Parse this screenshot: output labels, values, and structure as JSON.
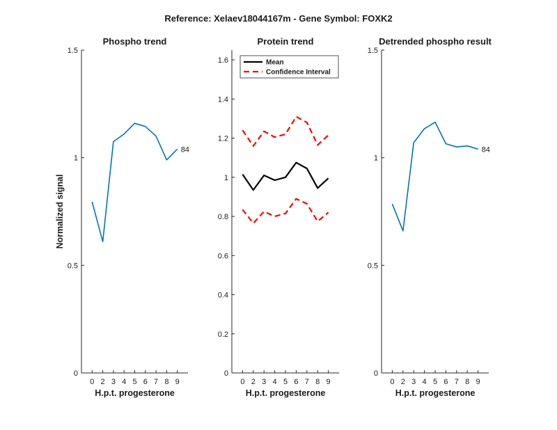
{
  "figure": {
    "suptitle": "Reference:  Xelaev18044167m - Gene Symbol:  FOXK2",
    "colors": {
      "blue": "#0072BD",
      "black": "#000000",
      "red": "#FF0000",
      "axis": "#262626"
    }
  },
  "chart_data": [
    {
      "type": "line",
      "title": "Phospho trend",
      "xlabel": "H.p.t. progesterone",
      "ylabel": "Normalized signal",
      "x_categories": [
        "0",
        "2",
        "3",
        "4",
        "5",
        "6",
        "7",
        "8",
        "9"
      ],
      "ylim": [
        0,
        1.5
      ],
      "yticks": [
        0,
        0.5,
        1,
        1.5
      ],
      "ytick_labels": [
        "0",
        "0.5",
        "1",
        "1.5"
      ],
      "grid": false,
      "series": [
        {
          "values": [
            0.795,
            0.61,
            1.075,
            1.11,
            1.16,
            1.145,
            1.1,
            0.99,
            1.04
          ],
          "color": "#0072BD",
          "style": "solid"
        }
      ],
      "end_label": "84"
    },
    {
      "type": "line",
      "title": "Protein trend",
      "xlabel": "H.p.t. progesterone",
      "ylabel": "",
      "x_categories": [
        "0",
        "2",
        "3",
        "4",
        "5",
        "6",
        "7",
        "8",
        "9"
      ],
      "ylim": [
        0,
        1.65
      ],
      "yticks": [
        0,
        0.2,
        0.4,
        0.6,
        0.8,
        1,
        1.2,
        1.4,
        1.6
      ],
      "ytick_labels": [
        "0",
        "0.2",
        "0.4",
        "0.6",
        "0.8",
        "1",
        "1.2",
        "1.4",
        "1.6"
      ],
      "grid": false,
      "legend": {
        "placement": "top-left",
        "entries": [
          {
            "label": "Mean",
            "color": "#000000",
            "style": "solid"
          },
          {
            "label": "Confidence Interval",
            "color": "#FF0000",
            "style": "dashed"
          }
        ]
      },
      "series": [
        {
          "name": "Mean",
          "values": [
            1.015,
            0.935,
            1.01,
            0.985,
            1.0,
            1.075,
            1.045,
            0.945,
            0.995
          ],
          "color": "#000000",
          "style": "solid"
        },
        {
          "name": "Confidence Interval",
          "values": [
            1.24,
            1.16,
            1.235,
            1.205,
            1.22,
            1.31,
            1.28,
            1.165,
            1.215
          ],
          "color": "#FF0000",
          "style": "dashed"
        },
        {
          "name": "Confidence Interval",
          "values": [
            0.835,
            0.765,
            0.825,
            0.8,
            0.815,
            0.89,
            0.865,
            0.775,
            0.82
          ],
          "color": "#FF0000",
          "style": "dashed"
        }
      ]
    },
    {
      "type": "line",
      "title": "Detrended phospho result",
      "xlabel": "H.p.t. progesterone",
      "ylabel": "",
      "x_categories": [
        "0",
        "2",
        "3",
        "4",
        "5",
        "6",
        "7",
        "8",
        "9"
      ],
      "ylim": [
        0,
        1.5
      ],
      "yticks": [
        0,
        0.5,
        1,
        1.5
      ],
      "ytick_labels": [
        "0",
        "0.5",
        "1",
        "1.5"
      ],
      "grid": false,
      "series": [
        {
          "values": [
            0.785,
            0.66,
            1.07,
            1.135,
            1.165,
            1.065,
            1.05,
            1.055,
            1.04
          ],
          "color": "#0072BD",
          "style": "solid"
        }
      ],
      "end_label": "84"
    }
  ]
}
